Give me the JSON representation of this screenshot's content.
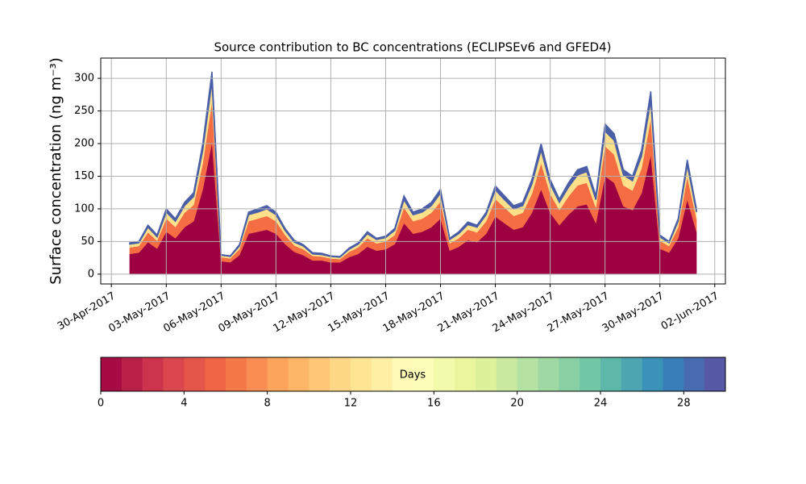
{
  "chart_data": [
    {
      "type": "area",
      "stacked": true,
      "title": "Source contribution to BC concentrations (ECLIPSEv6 and GFED4)",
      "ylabel": "Surface concentration (ng m⁻³)",
      "grid": true,
      "xlim": [
        "2017-04-29 10:00",
        "2017-06-02 14:00"
      ],
      "xticks": [
        {
          "value": "2017-04-30 00:00",
          "label": "30-Apr-2017"
        },
        {
          "value": "2017-05-03 00:00",
          "label": "03-May-2017"
        },
        {
          "value": "2017-05-06 00:00",
          "label": "06-May-2017"
        },
        {
          "value": "2017-05-09 00:00",
          "label": "09-May-2017"
        },
        {
          "value": "2017-05-12 00:00",
          "label": "12-May-2017"
        },
        {
          "value": "2017-05-15 00:00",
          "label": "15-May-2017"
        },
        {
          "value": "2017-05-18 00:00",
          "label": "18-May-2017"
        },
        {
          "value": "2017-05-21 00:00",
          "label": "21-May-2017"
        },
        {
          "value": "2017-05-24 00:00",
          "label": "24-May-2017"
        },
        {
          "value": "2017-05-27 00:00",
          "label": "27-May-2017"
        },
        {
          "value": "2017-05-30 00:00",
          "label": "30-May-2017"
        },
        {
          "value": "2017-06-02 00:00",
          "label": "02-Jun-2017"
        }
      ],
      "ylim": [
        -15,
        331
      ],
      "yticks": [
        0,
        50,
        100,
        150,
        200,
        250,
        300
      ],
      "x": [
        "2017-05-01 00:00",
        "2017-05-01 12:00",
        "2017-05-02 00:00",
        "2017-05-02 12:00",
        "2017-05-03 00:00",
        "2017-05-03 12:00",
        "2017-05-04 00:00",
        "2017-05-04 12:00",
        "2017-05-05 00:00",
        "2017-05-05 12:00",
        "2017-05-06 00:00",
        "2017-05-06 12:00",
        "2017-05-07 00:00",
        "2017-05-07 12:00",
        "2017-05-08 00:00",
        "2017-05-08 12:00",
        "2017-05-09 00:00",
        "2017-05-09 12:00",
        "2017-05-10 00:00",
        "2017-05-10 12:00",
        "2017-05-11 00:00",
        "2017-05-11 12:00",
        "2017-05-12 00:00",
        "2017-05-12 12:00",
        "2017-05-13 00:00",
        "2017-05-13 12:00",
        "2017-05-14 00:00",
        "2017-05-14 12:00",
        "2017-05-15 00:00",
        "2017-05-15 12:00",
        "2017-05-16 00:00",
        "2017-05-16 12:00",
        "2017-05-17 00:00",
        "2017-05-17 12:00",
        "2017-05-18 00:00",
        "2017-05-18 12:00",
        "2017-05-19 00:00",
        "2017-05-19 12:00",
        "2017-05-20 00:00",
        "2017-05-20 12:00",
        "2017-05-21 00:00",
        "2017-05-21 12:00",
        "2017-05-22 00:00",
        "2017-05-22 12:00",
        "2017-05-23 00:00",
        "2017-05-23 12:00",
        "2017-05-24 00:00",
        "2017-05-24 12:00",
        "2017-05-25 00:00",
        "2017-05-25 12:00",
        "2017-05-26 00:00",
        "2017-05-26 12:00",
        "2017-05-27 00:00",
        "2017-05-27 12:00",
        "2017-05-28 00:00",
        "2017-05-28 12:00",
        "2017-05-29 00:00",
        "2017-05-29 12:00",
        "2017-05-30 00:00",
        "2017-05-30 12:00",
        "2017-05-31 00:00",
        "2017-05-31 12:00",
        "2017-06-01 00:00"
      ],
      "series": [
        {
          "color": "#9e0142",
          "values": [
            31,
            33,
            49,
            39,
            65,
            55,
            72,
            81,
            130,
            202,
            20,
            18,
            29,
            62,
            65,
            68,
            62,
            46,
            34,
            29,
            21,
            21,
            18,
            18,
            26,
            31,
            42,
            36,
            38,
            46,
            78,
            62,
            65,
            72,
            85,
            36,
            42,
            52,
            49,
            62,
            88,
            78,
            68,
            72,
            94,
            130,
            94,
            75,
            91,
            104,
            107,
            78,
            150,
            140,
            104,
            98,
            124,
            182,
            39,
            33,
            55,
            114,
            65
          ]
        },
        {
          "color": "#f46d43",
          "values": [
            10,
            10,
            15,
            12,
            20,
            17,
            22,
            25,
            40,
            62,
            6,
            6,
            9,
            19,
            20,
            21,
            19,
            14,
            10,
            9,
            7,
            6,
            6,
            5,
            8,
            10,
            13,
            11,
            12,
            14,
            24,
            19,
            20,
            22,
            26,
            11,
            13,
            16,
            15,
            19,
            27,
            24,
            21,
            22,
            29,
            40,
            29,
            23,
            28,
            32,
            33,
            24,
            46,
            43,
            32,
            30,
            38,
            56,
            12,
            10,
            17,
            35,
            20
          ]
        },
        {
          "color": "#fee08b",
          "values": [
            5,
            5,
            8,
            6,
            10,
            9,
            11,
            13,
            20,
            31,
            3,
            3,
            5,
            10,
            10,
            11,
            10,
            7,
            5,
            5,
            3,
            3,
            3,
            3,
            4,
            5,
            7,
            6,
            6,
            7,
            12,
            10,
            10,
            11,
            13,
            6,
            7,
            8,
            8,
            10,
            14,
            12,
            11,
            11,
            15,
            20,
            15,
            12,
            14,
            16,
            17,
            12,
            23,
            22,
            16,
            15,
            19,
            28,
            6,
            5,
            9,
            18,
            10
          ]
        },
        {
          "color": "#4a5fa8",
          "values": [
            2,
            2,
            3,
            3,
            5,
            4,
            5,
            6,
            10,
            15,
            1,
            1,
            2,
            4,
            5,
            5,
            4,
            3,
            3,
            2,
            2,
            2,
            1,
            1,
            2,
            2,
            3,
            2,
            2,
            3,
            6,
            4,
            5,
            5,
            6,
            2,
            3,
            4,
            3,
            4,
            6,
            6,
            5,
            5,
            7,
            10,
            7,
            5,
            7,
            8,
            8,
            6,
            11,
            10,
            8,
            7,
            9,
            14,
            3,
            2,
            4,
            8,
            5
          ]
        }
      ]
    },
    {
      "type": "colorbar",
      "label": "Days",
      "xlim": [
        0,
        30
      ],
      "xticks": [
        0,
        4,
        8,
        12,
        16,
        20,
        24,
        28
      ],
      "bins": [
        0,
        1,
        2,
        3,
        4,
        5,
        6,
        7,
        8,
        9,
        10,
        11,
        12,
        13,
        14,
        15,
        16,
        17,
        18,
        19,
        20,
        21,
        22,
        23,
        24,
        25,
        26,
        27,
        28,
        29,
        30
      ],
      "colors": [
        "#a70b44",
        "#b92048",
        "#cc344d",
        "#da464e",
        "#e45649",
        "#ef6545",
        "#f57848",
        "#f98e52",
        "#fca35c",
        "#fdb668",
        "#fdc776",
        "#fed884",
        "#fee594",
        "#fff0a5",
        "#fffab6",
        "#fbfdb9",
        "#f2faab",
        "#eaf69e",
        "#dcf19a",
        "#c8e99e",
        "#b5e1a2",
        "#a0d8a4",
        "#88cfa4",
        "#71c6a5",
        "#5db8a9",
        "#4ca5b1",
        "#3b92b9",
        "#397eb8",
        "#486bb0",
        "#5759a6"
      ]
    }
  ]
}
